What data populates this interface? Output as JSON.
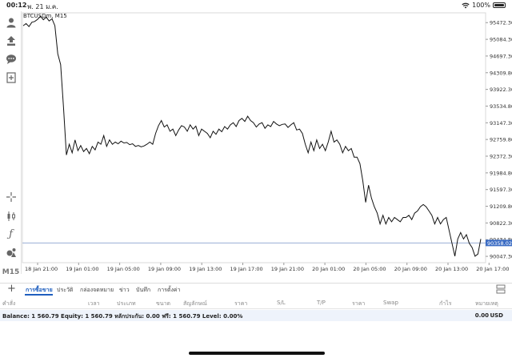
{
  "status": {
    "time": "00:12",
    "date": "พ. 21 ม.ค.",
    "battery": "100%"
  },
  "chart": {
    "symbol": "BTCUSDm, M15",
    "current_price": "90358.02"
  },
  "toolbar": {
    "items": [
      "account-icon",
      "trade-arrows-icon",
      "chat-icon",
      "add-document-icon",
      "crosshair-icon",
      "candles-icon",
      "indicator-f-icon",
      "objects-icon"
    ],
    "timeframe": "M15"
  },
  "tabs": [
    "การซื้อขาย",
    "ประวัติ",
    "กล่องจดหมาย",
    "ข่าว",
    "บันทึก",
    "การตั้งค่า"
  ],
  "table_headers": [
    "คำสั่ง",
    "เวลา",
    "ประเภท",
    "ขนาด",
    "สัญลักษณ์",
    "ราคา",
    "S/L",
    "T/P",
    "ราคา",
    "Swap",
    "กำไร",
    "หมายเหตุ"
  ],
  "balance": {
    "text": "Balance: 1 560.79 Equity: 1 560.79 หลักประกัน: 0.00 ฟรี: 1 560.79 Level: 0.00%",
    "amount": "0.00",
    "currency": "USD"
  },
  "chart_data": {
    "type": "line",
    "title": "BTCUSDm, M15",
    "y_ticks": [
      95472.3,
      95084.3,
      94697.3,
      94309.8,
      93922.3,
      93534.8,
      93147.3,
      92759.8,
      92372.3,
      91984.8,
      91597.3,
      91209.8,
      90822.3,
      90434.8,
      90047.3
    ],
    "y_tick_labels": [
      "95472.30",
      "95084.30",
      "94697.30",
      "94309.80",
      "93922.30",
      "93534.80",
      "93147.30",
      "92759.80",
      "92372.30",
      "91984.80",
      "91597.30",
      "91209.80",
      "90822.30",
      "90434.80",
      "90047.30"
    ],
    "ylim": [
      89900,
      95700
    ],
    "x_tick_labels": [
      "18 Jan 21:00",
      "19 Jan 01:00",
      "19 Jan 05:00",
      "19 Jan 09:00",
      "19 Jan 13:00",
      "19 Jan 17:00",
      "19 Jan 21:00",
      "20 Jan 01:00",
      "20 Jan 05:00",
      "20 Jan 09:00",
      "20 Jan 13:00",
      "20 Jan 17:00"
    ],
    "current_price": 90358.02,
    "series": [
      {
        "values": [
          95400,
          95450,
          95380,
          95480,
          95500,
          95550,
          95620,
          95540,
          95600,
          95510,
          95560,
          95400,
          94750,
          94500,
          93500,
          92400,
          92650,
          92450,
          92750,
          92500,
          92620,
          92480,
          92550,
          92430,
          92600,
          92520,
          92700,
          92650,
          92850,
          92600,
          92750,
          92650,
          92700,
          92660,
          92720,
          92680,
          92690,
          92640,
          92660,
          92600,
          92620,
          92590,
          92610,
          92650,
          92700,
          92650,
          92900,
          93080,
          93200,
          93050,
          93100,
          92950,
          93000,
          92850,
          92980,
          93080,
          93050,
          92950,
          93100,
          93000,
          93070,
          92850,
          93000,
          92950,
          92900,
          92800,
          92950,
          92880,
          93000,
          92940,
          93060,
          93000,
          93100,
          93150,
          93060,
          93200,
          93250,
          93180,
          93300,
          93200,
          93150,
          93050,
          93120,
          93150,
          93020,
          93100,
          93060,
          93180,
          93120,
          93080,
          93110,
          93120,
          93040,
          93100,
          93150,
          92980,
          93000,
          92900,
          92650,
          92450,
          92700,
          92500,
          92750,
          92550,
          92650,
          92500,
          92700,
          92950,
          92700,
          92750,
          92650,
          92450,
          92600,
          92500,
          92550,
          92350,
          92350,
          92200,
          91800,
          91300,
          91700,
          91400,
          91200,
          91050,
          90800,
          91000,
          90800,
          90950,
          90850,
          90950,
          90900,
          90850,
          90950,
          90950,
          91000,
          90900,
          91050,
          91100,
          91200,
          91250,
          91200,
          91100,
          91000,
          90800,
          90950,
          90800,
          90900,
          90950,
          90650,
          90350,
          90050,
          90450,
          90600,
          90450,
          90550,
          90350,
          90250,
          90050,
          90100,
          90450
        ]
      }
    ]
  }
}
